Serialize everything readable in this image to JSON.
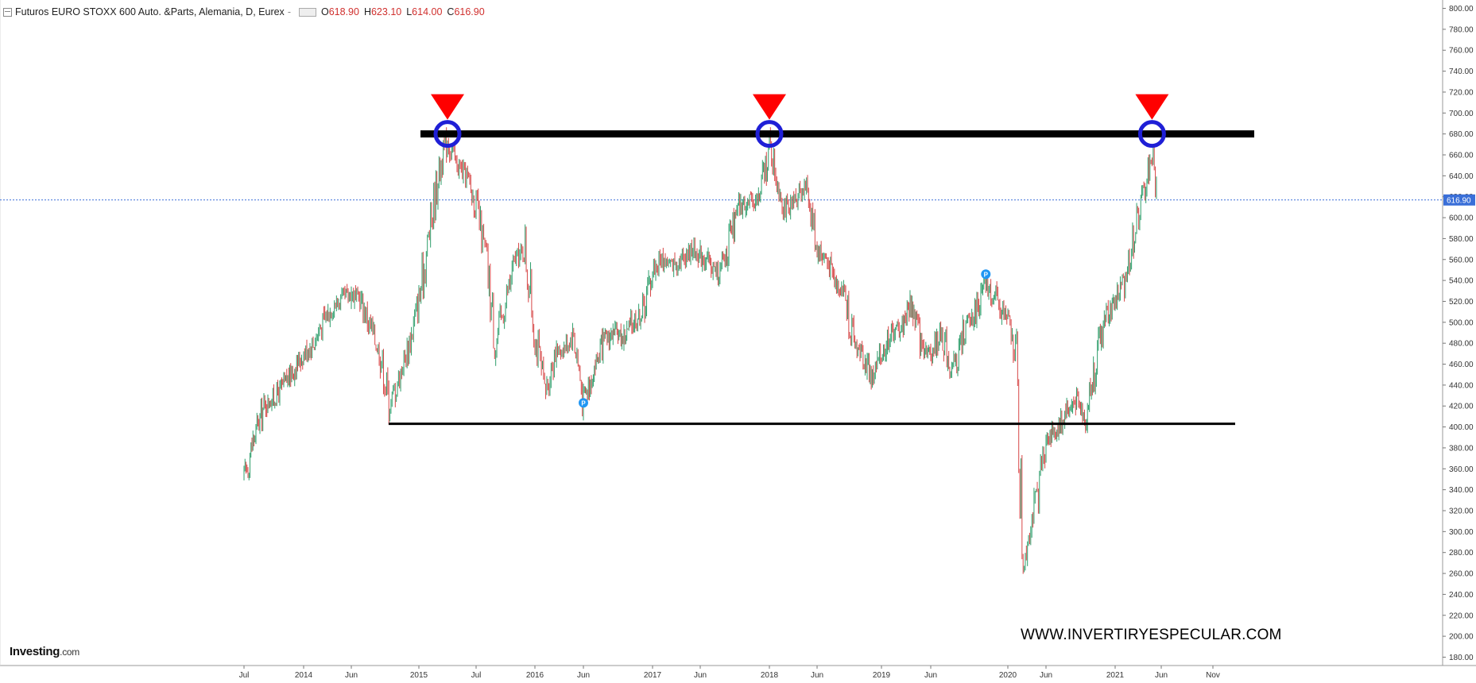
{
  "header": {
    "title": "Futuros EURO STOXX 600 Auto. &Parts, Alemania, D, Eurex",
    "dash": "-",
    "open_key": "O",
    "open": "618.90",
    "high_key": "H",
    "high": "623.10",
    "low_key": "L",
    "low": "614.00",
    "close_key": "C",
    "close": "616.90"
  },
  "brand": {
    "name": "Investing",
    "suffix": ".com"
  },
  "watermark": "WWW.INVERTIRYESPECULAR.COM",
  "colors": {
    "up": "#2e9e6b",
    "down": "#d64545",
    "resistance": "#000000",
    "marker_triangle": "#ff0000",
    "marker_circle": "#1f1fd6",
    "price_line": "#3a6fd8",
    "pivot_marker": "#2196f3"
  },
  "chart_data": {
    "type": "candlestick",
    "title": "Futuros EURO STOXX 600 Auto. &Parts, Alemania, D, Eurex",
    "x_tick_labels": [
      "Jul",
      "2014",
      "Jun",
      "2015",
      "Jul",
      "2016",
      "Jun",
      "2017",
      "Jun",
      "2018",
      "Jun",
      "2019",
      "Jun",
      "2020",
      "Jun",
      "2021",
      "Jun",
      "Nov"
    ],
    "y_tick_labels": [
      "180.00",
      "200.00",
      "220.00",
      "240.00",
      "260.00",
      "280.00",
      "300.00",
      "320.00",
      "340.00",
      "360.00",
      "380.00",
      "400.00",
      "420.00",
      "440.00",
      "460.00",
      "480.00",
      "500.00",
      "520.00",
      "540.00",
      "560.00",
      "580.00",
      "600.00",
      "620.00",
      "640.00",
      "660.00",
      "680.00",
      "700.00",
      "720.00",
      "740.00",
      "760.00",
      "780.00",
      "800.00"
    ],
    "ylim": [
      172,
      808
    ],
    "last_price": 616.9,
    "last_price_label": "616.90",
    "price_path": [
      [
        "2013-07",
        350
      ],
      [
        "2013-08",
        390
      ],
      [
        "2013-09",
        420
      ],
      [
        "2013-10",
        428
      ],
      [
        "2013-11",
        440
      ],
      [
        "2013-12",
        455
      ],
      [
        "2014-01",
        470
      ],
      [
        "2014-02",
        480
      ],
      [
        "2014-03",
        500
      ],
      [
        "2014-04",
        515
      ],
      [
        "2014-05",
        522
      ],
      [
        "2014-06",
        528
      ],
      [
        "2014-07",
        520
      ],
      [
        "2014-08",
        495
      ],
      [
        "2014-09",
        470
      ],
      [
        "2014-10",
        420
      ],
      [
        "2014-11",
        450
      ],
      [
        "2014-12",
        480
      ],
      [
        "2015-01",
        520
      ],
      [
        "2015-02",
        580
      ],
      [
        "2015-03",
        640
      ],
      [
        "2015-04",
        675
      ],
      [
        "2015-05",
        650
      ],
      [
        "2015-06",
        640
      ],
      [
        "2015-07",
        610
      ],
      [
        "2015-08",
        560
      ],
      [
        "2015-09",
        480
      ],
      [
        "2015-10",
        520
      ],
      [
        "2015-11",
        560
      ],
      [
        "2015-12",
        570
      ],
      [
        "2016-01",
        490
      ],
      [
        "2016-02",
        430
      ],
      [
        "2016-03",
        470
      ],
      [
        "2016-04",
        475
      ],
      [
        "2016-05",
        490
      ],
      [
        "2016-06",
        425
      ],
      [
        "2016-07",
        455
      ],
      [
        "2016-08",
        480
      ],
      [
        "2016-09",
        490
      ],
      [
        "2016-10",
        485
      ],
      [
        "2016-11",
        500
      ],
      [
        "2016-12",
        510
      ],
      [
        "2017-01",
        550
      ],
      [
        "2017-02",
        560
      ],
      [
        "2017-03",
        555
      ],
      [
        "2017-04",
        560
      ],
      [
        "2017-05",
        570
      ],
      [
        "2017-06",
        565
      ],
      [
        "2017-07",
        555
      ],
      [
        "2017-08",
        545
      ],
      [
        "2017-09",
        580
      ],
      [
        "2017-10",
        610
      ],
      [
        "2017-11",
        615
      ],
      [
        "2017-12",
        620
      ],
      [
        "2018-01",
        670
      ],
      [
        "2018-02",
        630
      ],
      [
        "2018-03",
        600
      ],
      [
        "2018-04",
        625
      ],
      [
        "2018-05",
        630
      ],
      [
        "2018-06",
        570
      ],
      [
        "2018-07",
        560
      ],
      [
        "2018-08",
        540
      ],
      [
        "2018-09",
        530
      ],
      [
        "2018-10",
        480
      ],
      [
        "2018-11",
        470
      ],
      [
        "2018-12",
        445
      ],
      [
        "2019-01",
        470
      ],
      [
        "2019-02",
        490
      ],
      [
        "2019-03",
        495
      ],
      [
        "2019-04",
        520
      ],
      [
        "2019-05",
        480
      ],
      [
        "2019-06",
        470
      ],
      [
        "2019-07",
        490
      ],
      [
        "2019-08",
        450
      ],
      [
        "2019-09",
        490
      ],
      [
        "2019-10",
        510
      ],
      [
        "2019-11",
        535
      ],
      [
        "2019-12",
        520
      ],
      [
        "2020-01",
        500
      ],
      [
        "2020-02",
        470
      ],
      [
        "2020-03",
        270
      ],
      [
        "2020-04",
        310
      ],
      [
        "2020-05",
        340
      ],
      [
        "2020-06",
        390
      ],
      [
        "2020-07",
        395
      ],
      [
        "2020-08",
        415
      ],
      [
        "2020-09",
        425
      ],
      [
        "2020-10",
        410
      ],
      [
        "2020-11",
        460
      ],
      [
        "2020-12",
        505
      ],
      [
        "2021-01",
        520
      ],
      [
        "2021-02",
        540
      ],
      [
        "2021-03",
        580
      ],
      [
        "2021-04",
        620
      ],
      [
        "2021-05",
        660
      ],
      [
        "2021-05b",
        617
      ]
    ],
    "annotations": {
      "resistance_level": 680,
      "support_level": 403,
      "triangle_markers_at": [
        "2015-04",
        "2018-01",
        "2021-05"
      ],
      "pivot_markers": [
        {
          "date": "2016-06",
          "label": "P",
          "value": 423
        },
        {
          "date": "2019-11",
          "label": "P",
          "value": 546
        }
      ]
    }
  }
}
